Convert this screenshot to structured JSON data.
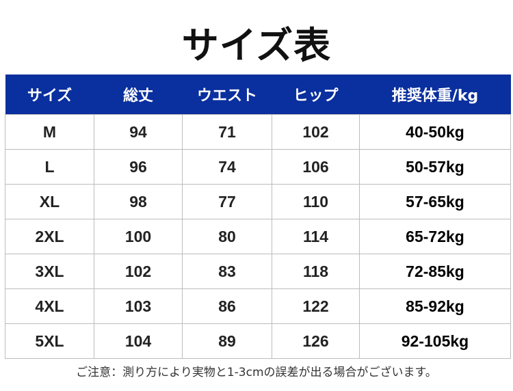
{
  "title": "サイズ表",
  "header_color": "#0a2f9e",
  "columns": [
    "サイズ",
    "総丈",
    "ウエスト",
    "ヒップ",
    "推奨体重/kg"
  ],
  "rows": [
    [
      "M",
      "94",
      "71",
      "102",
      "40-50kg"
    ],
    [
      "L",
      "96",
      "74",
      "106",
      "50-57kg"
    ],
    [
      "XL",
      "98",
      "77",
      "110",
      "57-65kg"
    ],
    [
      "2XL",
      "100",
      "80",
      "114",
      "65-72kg"
    ],
    [
      "3XL",
      "102",
      "83",
      "118",
      "72-85kg"
    ],
    [
      "4XL",
      "103",
      "86",
      "122",
      "85-92kg"
    ],
    [
      "5XL",
      "104",
      "89",
      "126",
      "92-105kg"
    ]
  ],
  "note": "ご注意：測り方により実物と1-3cmの誤差が出る場合がございます。"
}
